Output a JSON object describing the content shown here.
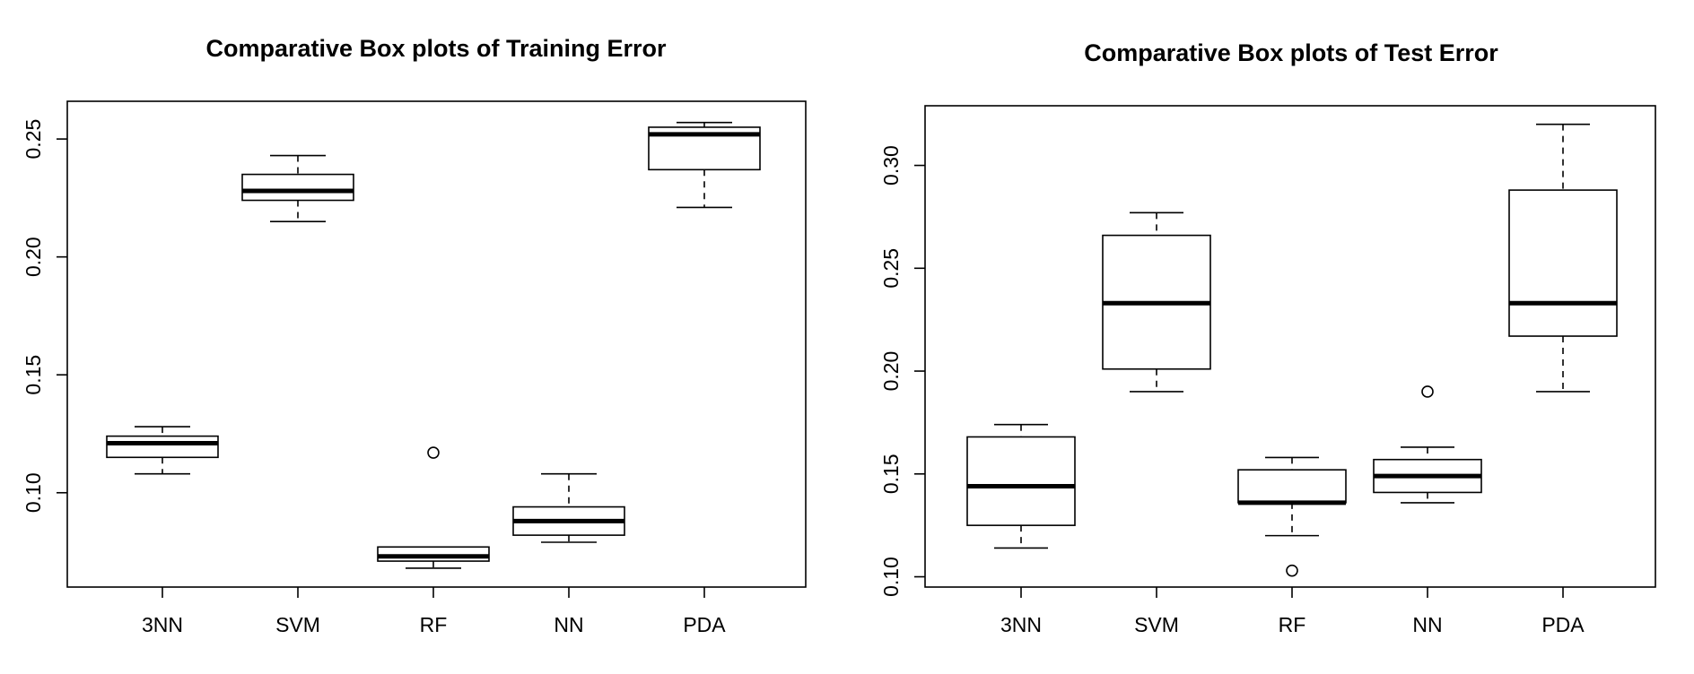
{
  "chart_data": [
    {
      "type": "box",
      "title": "Comparative Box plots of Training Error",
      "xlabel": "",
      "ylabel": "",
      "categories": [
        "3NN",
        "SVM",
        "RF",
        "NN",
        "PDA"
      ],
      "ylim": [
        0.06,
        0.266
      ],
      "yticks": [
        0.1,
        0.15,
        0.2,
        0.25
      ],
      "ytick_labels": [
        "0.10",
        "0.15",
        "0.20",
        "0.25"
      ],
      "boxes": [
        {
          "min": 0.108,
          "q1": 0.115,
          "median": 0.121,
          "q3": 0.124,
          "max": 0.128,
          "outliers": []
        },
        {
          "min": 0.215,
          "q1": 0.224,
          "median": 0.228,
          "q3": 0.235,
          "max": 0.243,
          "outliers": []
        },
        {
          "min": 0.068,
          "q1": 0.071,
          "median": 0.073,
          "q3": 0.077,
          "max": 0.077,
          "outliers": [
            0.117
          ]
        },
        {
          "min": 0.079,
          "q1": 0.082,
          "median": 0.088,
          "q3": 0.094,
          "max": 0.108,
          "outliers": []
        },
        {
          "min": 0.221,
          "q1": 0.237,
          "median": 0.252,
          "q3": 0.255,
          "max": 0.257,
          "outliers": []
        }
      ]
    },
    {
      "type": "box",
      "title": "Comparative Box plots of Test Error",
      "xlabel": "",
      "ylabel": "",
      "categories": [
        "3NN",
        "SVM",
        "RF",
        "NN",
        "PDA"
      ],
      "ylim": [
        0.095,
        0.329
      ],
      "yticks": [
        0.1,
        0.15,
        0.2,
        0.25,
        0.3
      ],
      "ytick_labels": [
        "0.10",
        "0.15",
        "0.20",
        "0.25",
        "0.30"
      ],
      "boxes": [
        {
          "min": 0.114,
          "q1": 0.125,
          "median": 0.144,
          "q3": 0.168,
          "max": 0.174,
          "outliers": []
        },
        {
          "min": 0.19,
          "q1": 0.201,
          "median": 0.233,
          "q3": 0.266,
          "max": 0.277,
          "outliers": []
        },
        {
          "min": 0.12,
          "q1": 0.136,
          "median": 0.136,
          "q3": 0.152,
          "max": 0.158,
          "outliers": [
            0.103
          ]
        },
        {
          "min": 0.136,
          "q1": 0.141,
          "median": 0.149,
          "q3": 0.157,
          "max": 0.163,
          "outliers": [
            0.19
          ]
        },
        {
          "min": 0.19,
          "q1": 0.217,
          "median": 0.233,
          "q3": 0.288,
          "max": 0.32,
          "outliers": []
        }
      ]
    }
  ]
}
